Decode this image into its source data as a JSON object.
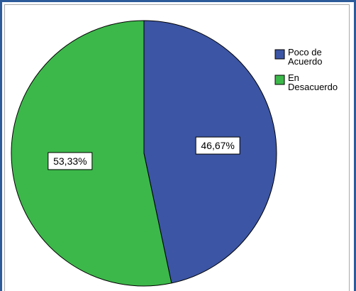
{
  "chart_data": {
    "type": "pie",
    "slices": [
      {
        "label": "Poco de Acuerdo",
        "value": 46.67,
        "value_label": "46,67%",
        "color": "#3c55a4"
      },
      {
        "label": "En Desacuerdo",
        "value": 53.33,
        "value_label": "53,33%",
        "color": "#3cb84a"
      }
    ],
    "legend": {
      "placement": "right",
      "entries": [
        {
          "lines": [
            "Poco de",
            "Acuerdo"
          ],
          "color": "#3c55a4"
        },
        {
          "lines": [
            "En",
            "Desacuerdo"
          ],
          "color": "#3cb84a"
        }
      ]
    },
    "start_angle_deg": 0,
    "direction": "clockwise"
  },
  "colors": {
    "frame": "#2d5b9a",
    "slice_outline": "#000000"
  }
}
